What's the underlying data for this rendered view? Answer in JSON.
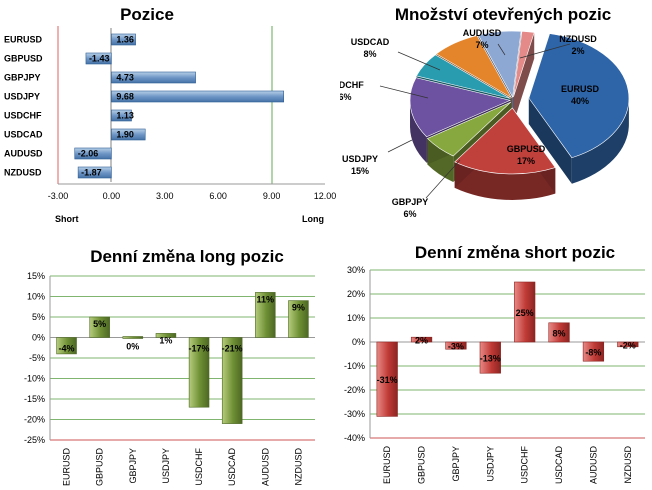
{
  "chart_data": [
    {
      "type": "bar",
      "orientation": "horizontal",
      "title": "Pozice",
      "categories": [
        "EURUSD",
        "GBPUSD",
        "GBPJPY",
        "USDJPY",
        "USDCHF",
        "USDCAD",
        "AUDUSD",
        "NZDUSD"
      ],
      "values": [
        1.36,
        -1.43,
        4.73,
        9.68,
        1.13,
        1.9,
        -2.06,
        -1.87
      ],
      "data_labels": [
        "1.36",
        "-1.43",
        "4.73",
        "9.68",
        "1.13",
        "1.90",
        "-2.06",
        "-1.87"
      ],
      "xlim": [
        -3,
        12
      ],
      "x_ticks": [
        -3,
        0,
        3,
        6,
        9,
        12
      ],
      "x_tick_labels": [
        "-3.00",
        "0.00",
        "3.00",
        "6.00",
        "9.00",
        "12.00"
      ],
      "reference_lines": [
        -3,
        9
      ],
      "reference_line_colors": [
        "#e06060",
        "#66aa55"
      ],
      "left_label": "Short",
      "right_label": "Long",
      "bar_color": "#4472a8"
    },
    {
      "type": "pie",
      "style": "3d-exploded",
      "title": "Množství otevřených pozic",
      "slices": [
        {
          "label": "EURUSD",
          "value": 40,
          "text": "40%",
          "color": "#2e65a8"
        },
        {
          "label": "GBPUSD",
          "value": 17,
          "text": "17%",
          "color": "#c0403c"
        },
        {
          "label": "GBPJPY",
          "value": 6,
          "text": "6%",
          "color": "#86a83e"
        },
        {
          "label": "USDJPY",
          "value": 15,
          "text": "15%",
          "color": "#6c52a0"
        },
        {
          "label": "USDCHF",
          "value": 6,
          "text": "6%",
          "color": "#2a9cb0"
        },
        {
          "label": "USDCAD",
          "value": 8,
          "text": "8%",
          "color": "#e4852c"
        },
        {
          "label": "AUDUSD",
          "value": 7,
          "text": "7%",
          "color": "#8ea8d4"
        },
        {
          "label": "NZDUSD",
          "value": 2,
          "text": "2%",
          "color": "#e48a88"
        }
      ]
    },
    {
      "type": "bar",
      "title": "Denní změna long pozic",
      "categories": [
        "EURUSD",
        "GBPUSD",
        "GBPJPY",
        "USDJPY",
        "USDCHF",
        "USDCAD",
        "AUDUSD",
        "NZDUSD"
      ],
      "values": [
        -4,
        5,
        0,
        1,
        -17,
        -21,
        11,
        9
      ],
      "data_labels": [
        "-4%",
        "5%",
        "0%",
        "1%",
        "-17%",
        "-21%",
        "11%",
        "9%"
      ],
      "ylim": [
        -25,
        15
      ],
      "y_ticks": [
        -25,
        -20,
        -15,
        -10,
        -5,
        0,
        5,
        10,
        15
      ],
      "y_tick_labels": [
        "-25%",
        "-20%",
        "-15%",
        "-10%",
        "-5%",
        "0%",
        "5%",
        "10%",
        "15%"
      ],
      "bar_color": "#6e8f34",
      "grid_color": "#7fb56f",
      "border_line_color": "#cc5555"
    },
    {
      "type": "bar",
      "title": "Denní změna short pozic",
      "categories": [
        "EURUSD",
        "GBPUSD",
        "GBPJPY",
        "USDJPY",
        "USDCHF",
        "USDCAD",
        "AUDUSD",
        "NZDUSD"
      ],
      "values": [
        -31,
        2,
        -3,
        -13,
        25,
        8,
        -8,
        -2
      ],
      "data_labels": [
        "-31%",
        "2%",
        "-3%",
        "-13%",
        "25%",
        "8%",
        "-8%",
        "-2%"
      ],
      "ylim": [
        -40,
        30
      ],
      "y_ticks": [
        -40,
        -30,
        -20,
        -10,
        0,
        10,
        20,
        30
      ],
      "y_tick_labels": [
        "-40%",
        "-30%",
        "-20%",
        "-10%",
        "0%",
        "10%",
        "20%",
        "30%"
      ],
      "bar_color": "#c03a36",
      "grid_color": "#7fb56f",
      "border_line_color": "#cc5555"
    }
  ]
}
